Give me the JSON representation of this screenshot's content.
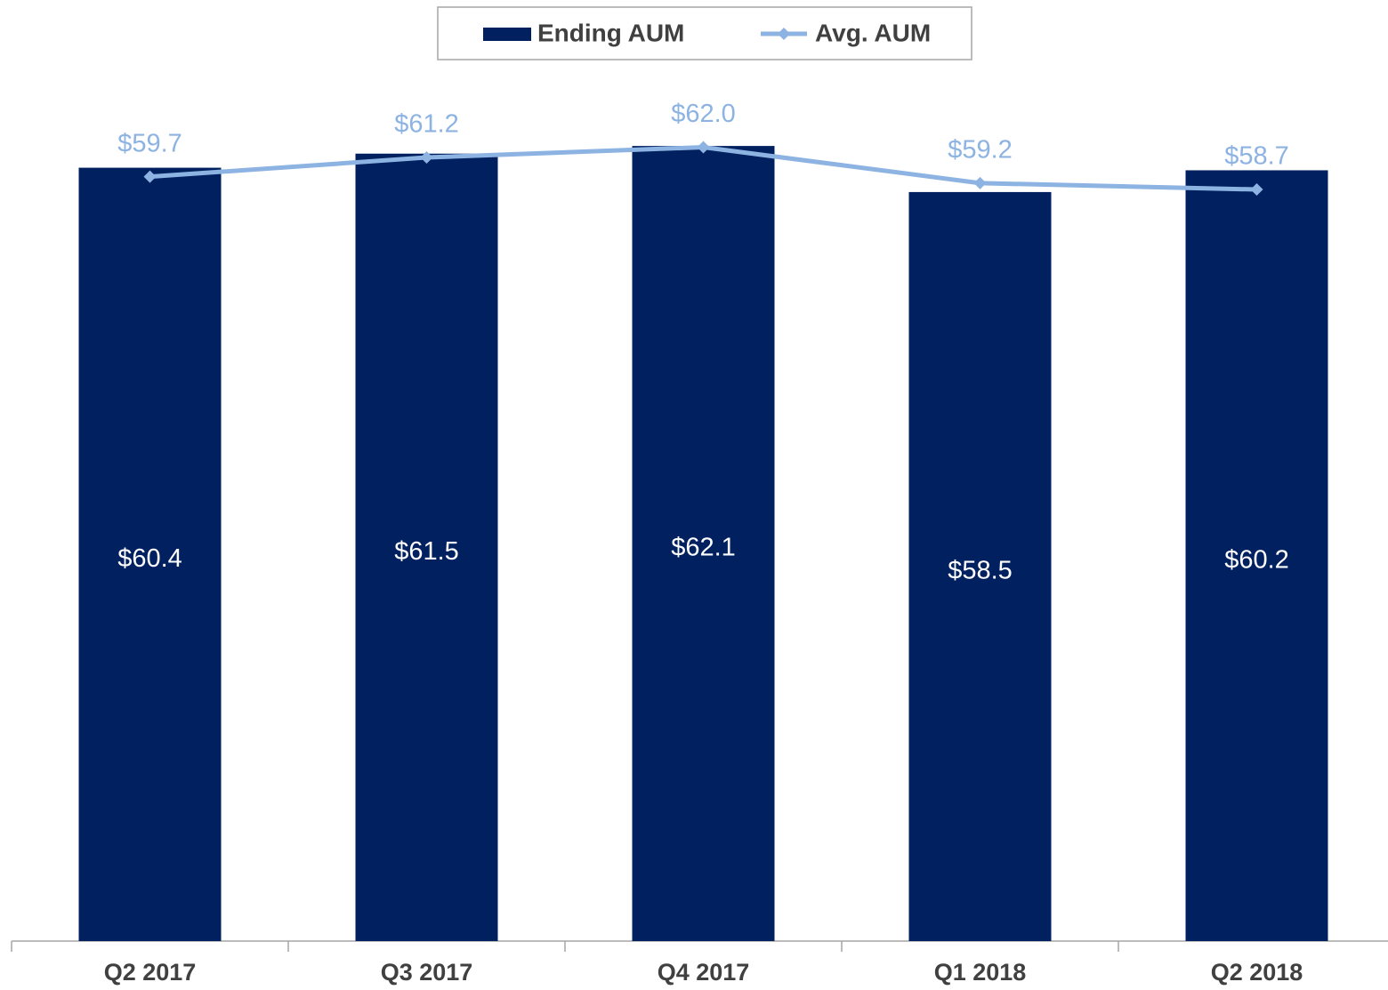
{
  "chart_data": {
    "type": "bar_line",
    "categories": [
      "Q2 2017",
      "Q3 2017",
      "Q4 2017",
      "Q1 2018",
      "Q2 2018"
    ],
    "series": [
      {
        "name": "Ending AUM",
        "type": "bar",
        "color": "#002060",
        "values": [
          60.4,
          61.5,
          62.1,
          58.5,
          60.2
        ],
        "value_labels": [
          "$60.4",
          "$61.5",
          "$62.1",
          "$58.5",
          "$60.2"
        ]
      },
      {
        "name": "Avg. AUM",
        "type": "line",
        "color": "#8db3e2",
        "values": [
          59.7,
          61.2,
          62.0,
          59.2,
          58.7
        ],
        "value_labels": [
          "$59.7",
          "$61.2",
          "$62.0",
          "$59.2",
          "$58.7"
        ]
      }
    ],
    "ylim": [
      0,
      73.5
    ],
    "legend": "top"
  }
}
